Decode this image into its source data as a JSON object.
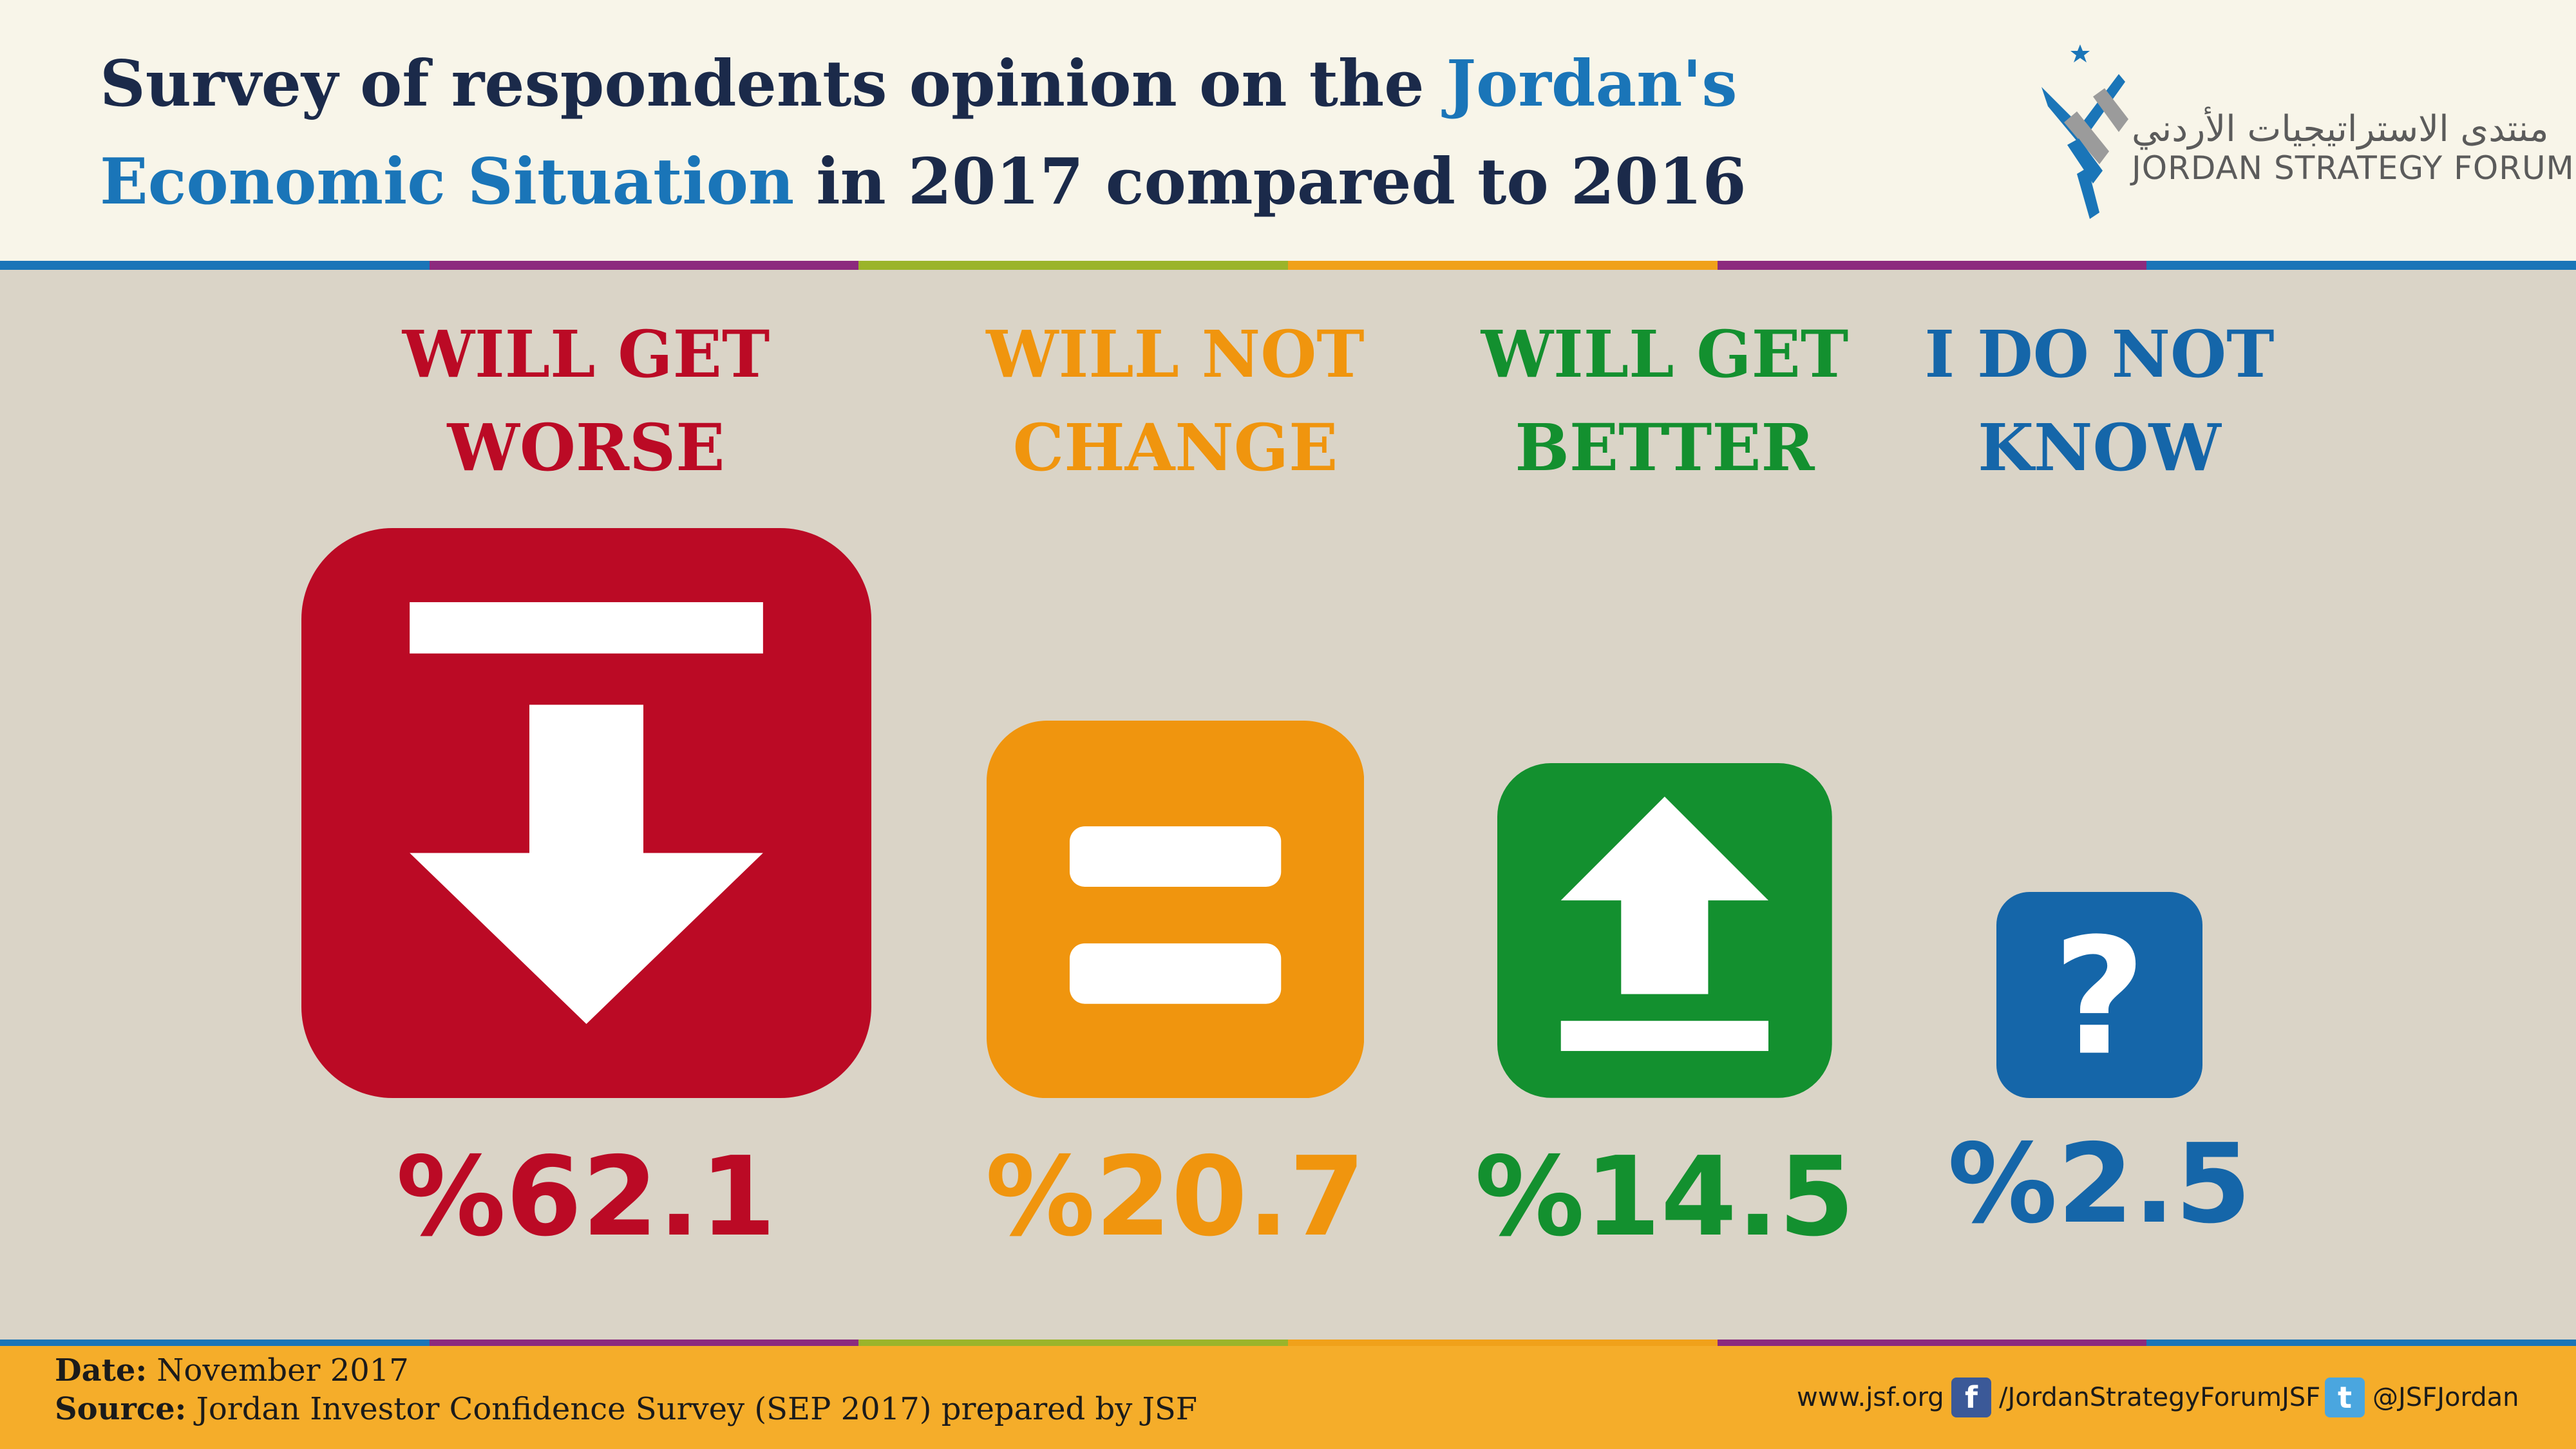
{
  "header": {
    "title_part1": "Survey of respondents opinion on the ",
    "title_hl1": "Jordan's",
    "title_hl2": "Economic Situation",
    "title_part2": " in 2017 compared to 2016",
    "logo_arabic": "منتدى الاستراتيجيات الأردني",
    "logo_english": "JORDAN STRATEGY FORUM"
  },
  "colors": {
    "worse": "#bb0a25",
    "no_change": "#f0950e",
    "better": "#13902f",
    "dont_know": "#1566a9",
    "title_dark": "#1b2a4a",
    "title_highlight": "#1a75b8",
    "background": "#dad4c7",
    "footer": "#f5ad2a"
  },
  "chart_data": {
    "type": "bar",
    "categories": [
      "WILL GET WORSE",
      "WILL NOT CHANGE",
      "WILL GET BETTER",
      "I DO NOT KNOW"
    ],
    "values": [
      62.1,
      20.7,
      14.5,
      2.5
    ],
    "value_labels": [
      "%62.1",
      "%20.7",
      "%14.5",
      "%2.5"
    ],
    "label_lines": [
      [
        "WILL GET",
        "WORSE"
      ],
      [
        "WILL NOT",
        "CHANGE"
      ],
      [
        "WILL GET",
        "BETTER"
      ],
      [
        "I DO NOT",
        "KNOW"
      ]
    ],
    "icons": [
      "down-arrow-icon",
      "equals-icon",
      "up-arrow-icon",
      "question-mark-icon"
    ],
    "unit": "%"
  },
  "footer": {
    "date_label": "Date:",
    "date_value": " November 2017",
    "source_label": "Source:",
    "source_value": " Jordan Investor Confidence Survey (SEP 2017) prepared by JSF",
    "website": "www.jsf.org",
    "facebook": "/JordanStrategyForumJSF",
    "twitter": "@JSFJordan"
  }
}
